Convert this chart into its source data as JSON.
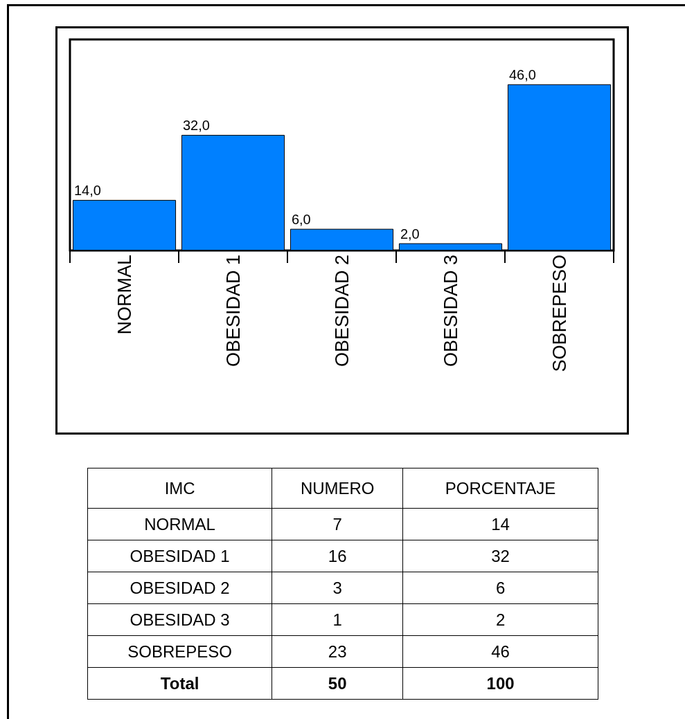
{
  "chart_data": [
    {
      "type": "bar",
      "categories": [
        "NORMAL",
        "OBESIDAD 1",
        "OBESIDAD 2",
        "OBESIDAD 3",
        "SOBREPESO"
      ],
      "values": [
        14,
        32,
        6,
        2,
        46
      ],
      "value_labels": [
        "14,0",
        "32,0",
        "6,0",
        "2,0",
        "46,0"
      ],
      "color": "#0080ff"
    },
    {
      "type": "other",
      "data_labels": true,
      "xlabel": "IMC",
      "categories": [
        "NORMAL",
        "OBESIDAD 1",
        "OBESIDAD 2",
        "OBESIDAD 3",
        "SOBREPESO",
        "Total"
      ],
      "series": [
        {
          "name": "NUMERO",
          "values": [
            7,
            16,
            3,
            1,
            23,
            50
          ]
        },
        {
          "name": "PORCENTAJE",
          "values": [
            14,
            32,
            6,
            2,
            46,
            100
          ]
        }
      ]
    }
  ]
}
